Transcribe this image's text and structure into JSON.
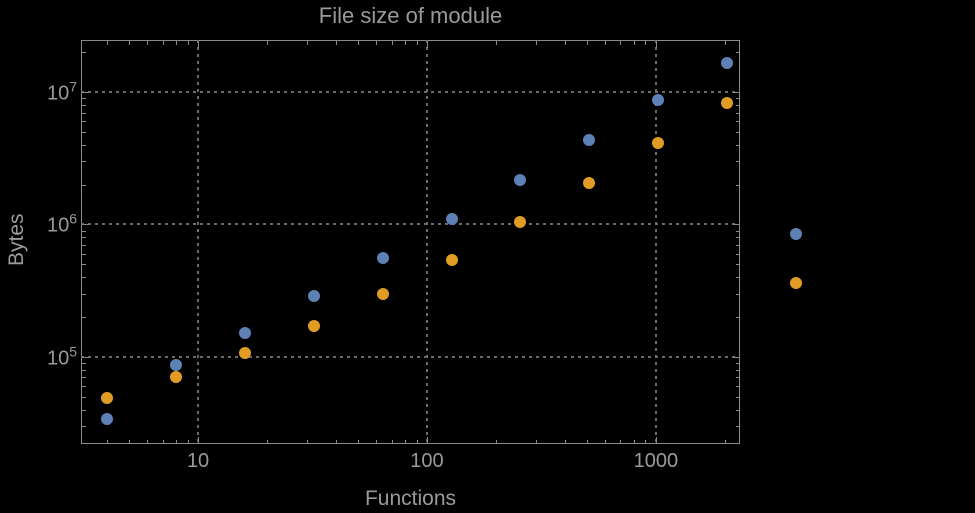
{
  "chart_data": {
    "type": "scatter",
    "title": "File size of module",
    "xlabel": "Functions",
    "ylabel": "Bytes",
    "x_scale": "log",
    "y_scale": "log",
    "grid": "dotted-at-decades",
    "legend": "none",
    "xlim": [
      3.08,
      2330
    ],
    "ylim": [
      22000,
      24700000
    ],
    "x_tick_labels": [
      "10",
      "100",
      "1000"
    ],
    "y_tick_exponents": [
      5,
      6,
      7
    ],
    "x": [
      4,
      8,
      16,
      32,
      64,
      128,
      256,
      512,
      1024,
      2048,
      4096
    ],
    "series": [
      {
        "name": "series-1-blue",
        "color": "#5e81b5",
        "values": [
          34000,
          87000,
          152000,
          290000,
          560000,
          1100000,
          2170000,
          4340000,
          8700000,
          16600000,
          840000
        ]
      },
      {
        "name": "series-2-orange",
        "color": "#e19c24",
        "values": [
          49000,
          70000,
          107000,
          171000,
          300000,
          540000,
          1040000,
          2060000,
          4100000,
          8300000,
          360000
        ]
      }
    ]
  },
  "colors": {
    "background": "#000000",
    "frame": "#8a8a8a",
    "text": "#9a9a9a",
    "grid": "#6b6b6b",
    "series1": "#5e81b5",
    "series2": "#e19c24"
  }
}
